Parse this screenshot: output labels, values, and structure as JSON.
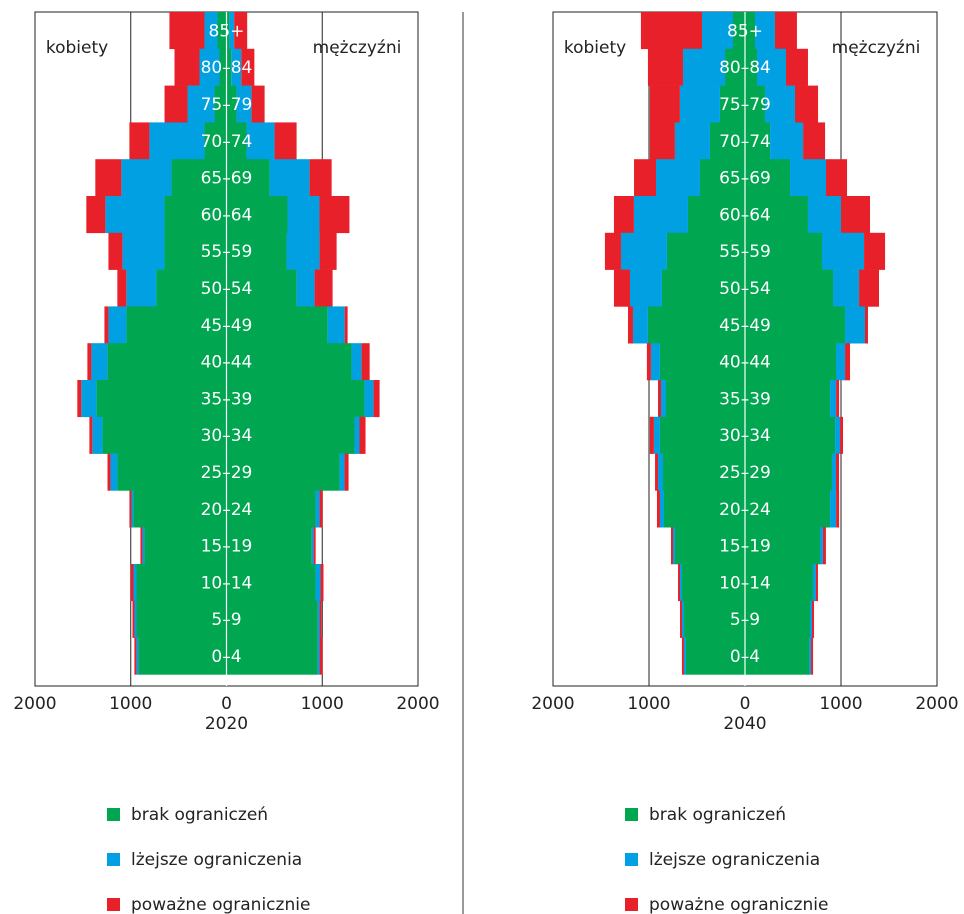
{
  "chart_data": [
    {
      "type": "population-pyramid",
      "xlabel": "2020",
      "left_label": "kobiety",
      "right_label": "mężczyźni",
      "categories": [
        "85+",
        "80–84",
        "75–79",
        "70–74",
        "65–69",
        "60–64",
        "55–59",
        "50–54",
        "45–49",
        "40–44",
        "35–39",
        "30–34",
        "25–29",
        "20–24",
        "15–19",
        "10–14",
        "5–9",
        "0–4"
      ],
      "xlim": [
        -2000,
        2000
      ],
      "xticks": [
        {
          "value": -2000,
          "label": "2000"
        },
        {
          "value": -1000,
          "label": "1000"
        },
        0,
        1000,
        2000
      ],
      "series": [
        {
          "name": "brak ograniczeń",
          "color": "#00a650",
          "female": [
            94,
            73,
            125,
            230,
            575,
            648,
            648,
            732,
            1045,
            1244,
            1359,
            1296,
            1139,
            972,
            857,
            940,
            940,
            920
          ],
          "male": [
            30,
            50,
            105,
            209,
            450,
            637,
            627,
            732,
            1056,
            1306,
            1442,
            1337,
            1181,
            930,
            889,
            930,
            951,
            951
          ]
        },
        {
          "name": "lżejsze ograniczenia",
          "color": "#00a0e3",
          "female": [
            136,
            209,
            282,
            575,
            523,
            617,
            439,
            314,
            188,
            167,
            157,
            105,
            73,
            21,
            21,
            31,
            21,
            21
          ],
          "male": [
            50,
            105,
            157,
            293,
            418,
            334,
            345,
            188,
            178,
            105,
            94,
            52,
            52,
            42,
            21,
            52,
            21,
            21
          ]
        },
        {
          "name": "poważne ogranicznie",
          "color": "#e8202a",
          "female": [
            366,
            261,
            240,
            209,
            272,
            199,
            146,
            94,
            42,
            42,
            42,
            31,
            31,
            21,
            21,
            31,
            21,
            21
          ],
          "male": [
            136,
            136,
            136,
            230,
            230,
            313,
            178,
            188,
            31,
            84,
            63,
            63,
            42,
            31,
            21,
            31,
            21,
            31
          ]
        }
      ]
    },
    {
      "type": "population-pyramid",
      "xlabel": "2040",
      "left_label": "kobiety",
      "right_label": "mężczyźni",
      "categories": [
        "85+",
        "80–84",
        "75–79",
        "70–74",
        "65–69",
        "60–64",
        "55–59",
        "50–54",
        "45–49",
        "40–44",
        "35–39",
        "30–34",
        "25–29",
        "20–24",
        "15–19",
        "10–14",
        "5–9",
        "0–4"
      ],
      "xlim": [
        -2000,
        2000
      ],
      "xticks": [
        {
          "value": -2000,
          "label": "2000"
        },
        {
          "value": -1000,
          "label": "1000"
        },
        0,
        1000,
        2000
      ],
      "series": [
        {
          "name": "brak ograniczeń",
          "color": "#00a650",
          "female": [
            125,
            208,
            261,
            365,
            469,
            594,
            813,
            865,
            1011,
            886,
            823,
            886,
            854,
            844,
            729,
            656,
            635,
            615
          ],
          "male": [
            104,
            125,
            208,
            261,
            469,
            656,
            802,
            917,
            1042,
            948,
            886,
            938,
            906,
            886,
            781,
            708,
            677,
            667
          ]
        },
        {
          "name": "lżejsze ograniczenia",
          "color": "#00a0e3",
          "female": [
            323,
            438,
            417,
            365,
            458,
            563,
            479,
            333,
            156,
            94,
            52,
            63,
            52,
            42,
            21,
            21,
            21,
            21
          ],
          "male": [
            208,
            302,
            313,
            344,
            375,
            344,
            438,
            271,
            208,
            94,
            63,
            52,
            42,
            63,
            31,
            31,
            21,
            21
          ]
        },
        {
          "name": "poważne ogranicznie",
          "color": "#e8202a",
          "female": [
            636,
            365,
            313,
            261,
            229,
            208,
            167,
            167,
            52,
            42,
            31,
            42,
            31,
            31,
            21,
            21,
            21,
            21
          ],
          "male": [
            229,
            229,
            240,
            229,
            219,
            302,
            219,
            208,
            31,
            52,
            31,
            31,
            31,
            31,
            31,
            21,
            21,
            21
          ]
        }
      ]
    }
  ]
}
